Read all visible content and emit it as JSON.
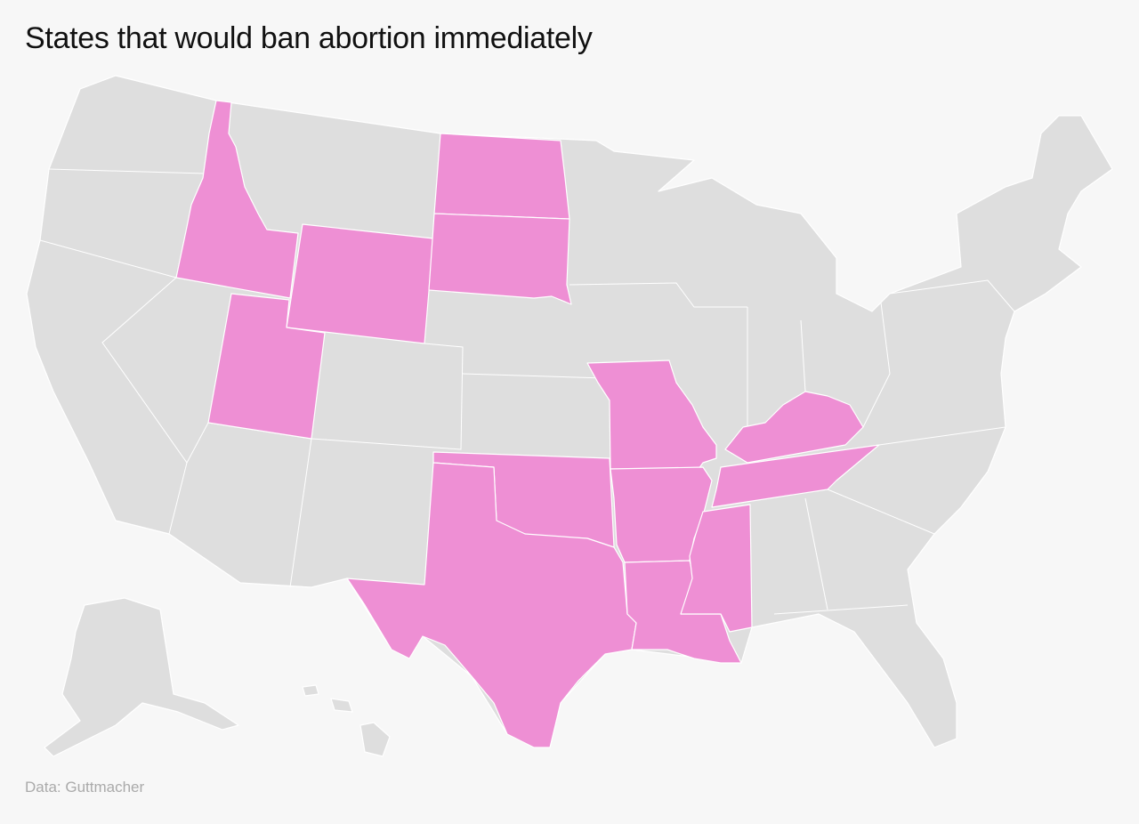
{
  "title": "States that would ban abortion immediately",
  "source": "Data: Guttmacher",
  "highlight_color": "#ee8fd4",
  "base_color": "#dedede",
  "background": "#f7f7f7"
}
